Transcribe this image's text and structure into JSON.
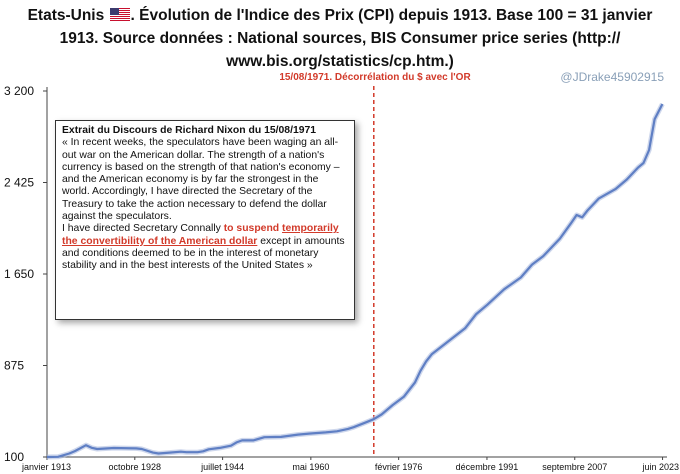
{
  "title_line1_pre": "Etats-Unis",
  "title_line1_post": ". Évolution de l'Indice des Prix (CPI) depuis 1913. Base 100 = 31 janvier",
  "title_line2": "1913. Source données : National sources, BIS Consumer price series (http://",
  "title_line3": "www.bis.org/statistics/cp.htm.)",
  "flag_icon": "us-flag-icon",
  "credit": "@JDrake45902915",
  "chart_data": {
    "type": "line",
    "title": "Etats-Unis. Évolution de l'Indice des Prix (CPI) depuis 1913. Base 100 = 31 janvier 1913. Source données : National sources, BIS Consumer price series (http://www.bis.org/statistics/cp.htm.)",
    "xlabel": "",
    "ylabel": "",
    "x_range": [
      1913.0,
      2023.5
    ],
    "ylim": [
      100,
      3200
    ],
    "y_ticks": [
      100,
      875,
      1650,
      2425,
      3200
    ],
    "y_tick_labels": [
      "100",
      "875",
      "1 650",
      "2 425",
      "3 200"
    ],
    "x_tick_labels": [
      "janvier 1913",
      "octobre 1928",
      "juillet 1944",
      "mai 1960",
      "février 1976",
      "décembre 1991",
      "septembre 2007",
      "juin 2023"
    ],
    "x_ticks": [
      1913.0,
      1928.75,
      1944.5,
      1960.33,
      1976.08,
      1991.92,
      2007.67,
      2023.42
    ],
    "grid": false,
    "line_color": "#5f7fc4",
    "vline": {
      "x": 1971.62,
      "color": "#d23a2a",
      "style": "dashed",
      "label": "15/08/1971. Décorrélation du $ avec l'OR"
    },
    "series": [
      {
        "name": "CPI",
        "x": [
          1913,
          1915,
          1917,
          1918,
          1920,
          1921,
          1922,
          1925,
          1929,
          1930,
          1932,
          1933,
          1935,
          1937,
          1938,
          1940,
          1941,
          1942,
          1944,
          1946,
          1947,
          1948,
          1950,
          1952,
          1955,
          1958,
          1960,
          1963,
          1965,
          1967,
          1968,
          1970,
          1971.6,
          1973,
          1975,
          1977,
          1979,
          1980,
          1981,
          1982,
          1985,
          1988,
          1990,
          1992,
          1995,
          1998,
          2000,
          2002,
          2005,
          2007,
          2008,
          2009,
          2010,
          2012,
          2015,
          2017,
          2019,
          2020,
          2021,
          2022,
          2023.4
        ],
        "y": [
          100,
          102,
          130,
          150,
          200,
          178,
          168,
          176,
          173,
          168,
          137,
          130,
          137,
          145,
          141,
          141,
          148,
          165,
          177,
          196,
          224,
          241,
          241,
          268,
          270,
          290,
          298,
          308,
          318,
          338,
          352,
          390,
          420,
          460,
          540,
          610,
          730,
          830,
          910,
          970,
          1080,
          1190,
          1310,
          1390,
          1520,
          1620,
          1730,
          1800,
          1950,
          2080,
          2150,
          2130,
          2190,
          2290,
          2370,
          2450,
          2550,
          2590,
          2700,
          2960,
          3090
        ]
      }
    ]
  },
  "nixon_box": {
    "heading": "Extrait du Discours de Richard Nixon du 15/08/1971",
    "para1": "« In recent weeks, the speculators have been waging an all-out war on the American dollar. The strength of a nation's currency is based on the strength of that nation's economy – and the American economy is by far the strongest in the world. Accordingly, I have directed the Secretary of the Treasury to take the action necessary to defend the dollar against the speculators.",
    "para2_pre": "I have directed Secretary Connally ",
    "para2_red1": "to suspend",
    "para2_red2": "temporarily the convertibility of the American dollar",
    "para2_post": " except in amounts and conditions deemed to be in the interest of monetary stability and in the best interests of the United States »"
  }
}
